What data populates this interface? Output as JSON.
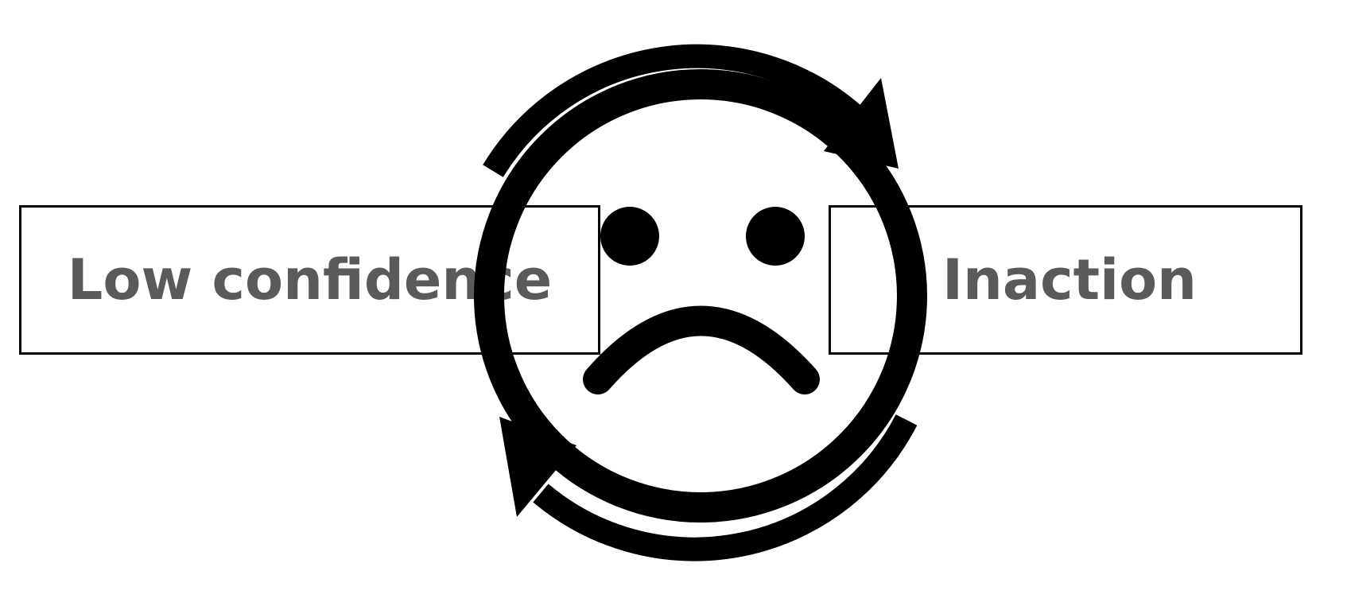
{
  "diagram": {
    "left_box": {
      "label": "Low confidence"
    },
    "right_box": {
      "label": "Inaction"
    },
    "center_icon": "sad-face-icon",
    "cycle_icon": "cycle-arrows-icon",
    "colors": {
      "stroke": "#000000",
      "label_text": "#5a5a5a",
      "background": "#ffffff"
    }
  }
}
